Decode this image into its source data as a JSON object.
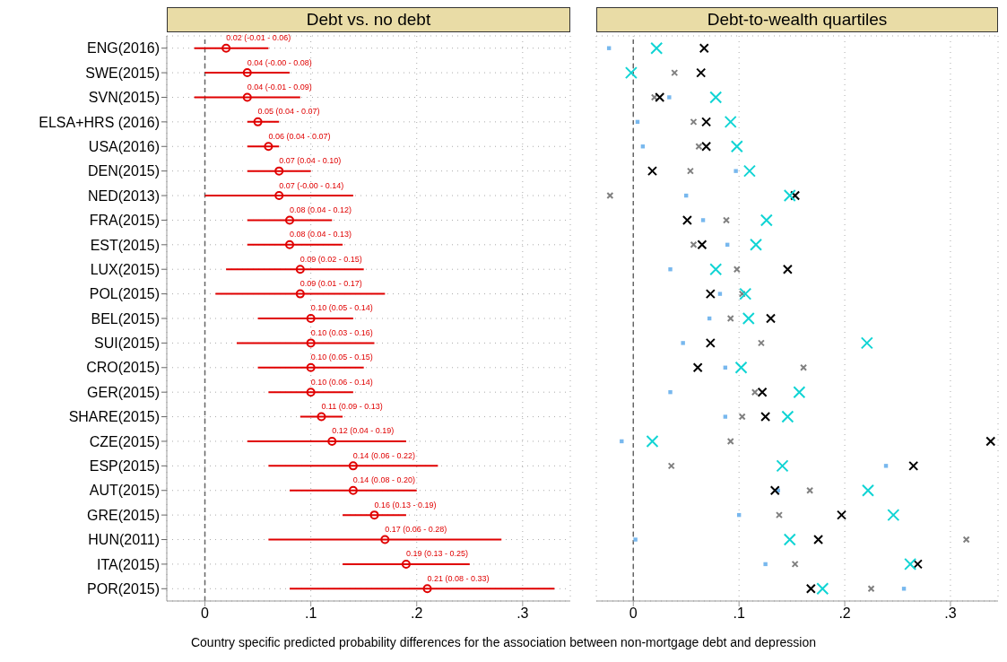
{
  "chart_data": [
    {
      "type": "scatter",
      "orientation": "horizontal",
      "title": "Debt vs. no debt",
      "categories": [
        "ENG(2016)",
        "SWE(2015)",
        "SVN(2015)",
        "ELSA+HRS (2016)",
        "USA(2016)",
        "DEN(2015)",
        "NED(2013)",
        "FRA(2015)",
        "EST(2015)",
        "LUX(2015)",
        "POL(2015)",
        "BEL(2015)",
        "SUI(2015)",
        "CRO(2015)",
        "GER(2015)",
        "SHARE(2015)",
        "CZE(2015)",
        "ESP(2015)",
        "AUT(2015)",
        "GRE(2015)",
        "HUN(2011)",
        "ITA(2015)",
        "POR(2015)"
      ],
      "values": [
        0.02,
        0.04,
        0.04,
        0.05,
        0.06,
        0.07,
        0.07,
        0.08,
        0.08,
        0.09,
        0.09,
        0.1,
        0.1,
        0.1,
        0.1,
        0.11,
        0.12,
        0.14,
        0.14,
        0.16,
        0.17,
        0.19,
        0.21
      ],
      "errors": [
        [
          -0.01,
          0.06
        ],
        [
          -0.0,
          0.08
        ],
        [
          -0.01,
          0.09
        ],
        [
          0.04,
          0.07
        ],
        [
          0.04,
          0.07
        ],
        [
          0.04,
          0.1
        ],
        [
          -0.0,
          0.14
        ],
        [
          0.04,
          0.12
        ],
        [
          0.04,
          0.13
        ],
        [
          0.02,
          0.15
        ],
        [
          0.01,
          0.17
        ],
        [
          0.05,
          0.14
        ],
        [
          0.03,
          0.16
        ],
        [
          0.05,
          0.15
        ],
        [
          0.06,
          0.14
        ],
        [
          0.09,
          0.13
        ],
        [
          0.04,
          0.19
        ],
        [
          0.06,
          0.22
        ],
        [
          0.08,
          0.2
        ],
        [
          0.13,
          0.19
        ],
        [
          0.06,
          0.28
        ],
        [
          0.13,
          0.25
        ],
        [
          0.08,
          0.33
        ]
      ],
      "value_labels": [
        "0.02 (-0.01 - 0.06)",
        "0.04 (-0.00 - 0.08)",
        "0.04 (-0.01 - 0.09)",
        "0.05 (0.04 - 0.07)",
        "0.06 (0.04 - 0.07)",
        "0.07 (0.04 - 0.10)",
        "0.07 (-0.00 - 0.14)",
        "0.08 (0.04 - 0.12)",
        "0.08 (0.04 - 0.13)",
        "0.09 (0.02 - 0.15)",
        "0.09 (0.01 - 0.17)",
        "0.10 (0.05 - 0.14)",
        "0.10 (0.03 - 0.16)",
        "0.10 (0.05 - 0.15)",
        "0.10 (0.06 - 0.14)",
        "0.11 (0.09 - 0.13)",
        "0.12 (0.04 - 0.19)",
        "0.14 (0.06 - 0.22)",
        "0.14 (0.08 - 0.20)",
        "0.16 (0.13 - 0.19)",
        "0.17 (0.06 - 0.28)",
        "0.19 (0.13 - 0.25)",
        "0.21 (0.08 - 0.33)"
      ],
      "color": "#e00000",
      "marker": "circle",
      "xlim": [
        -0.036,
        0.345
      ],
      "xticks": [
        0,
        {
          "value": 0.1,
          "label": ".1"
        },
        {
          "value": 0.2,
          "label": ".2"
        },
        {
          "value": 0.3,
          "label": ".3"
        }
      ],
      "grid": true,
      "ref_lines": [
        {
          "axis": "x",
          "value": 0,
          "color": "#666666",
          "line_style": "dashed"
        }
      ],
      "annotations": [
        "Country specific predicted probability differences for the association between non-mortgage debt and depression"
      ]
    },
    {
      "type": "scatter",
      "orientation": "horizontal",
      "title": "Debt-to-wealth quartiles",
      "categories": [
        null,
        null,
        null,
        null,
        null,
        null,
        null,
        null,
        null,
        null,
        null,
        null,
        null,
        null,
        null,
        null,
        null,
        null,
        null,
        null,
        null,
        null,
        null
      ],
      "series": [
        {
          "color": "#78b8ee",
          "marker": "square",
          "values": [
            -0.023,
            null,
            0.034,
            0.004,
            0.009,
            0.097,
            0.05,
            0.066,
            0.089,
            0.035,
            0.082,
            0.072,
            0.047,
            0.087,
            0.035,
            0.087,
            -0.011,
            0.239,
            0.137,
            0.1,
            0.002,
            0.125,
            0.256
          ]
        },
        {
          "color": "#808080",
          "marker": "cross",
          "values": [
            null,
            0.039,
            0.02,
            0.057,
            0.062,
            0.054,
            -0.022,
            0.088,
            0.057,
            0.098,
            0.103,
            0.092,
            0.121,
            0.161,
            0.115,
            0.103,
            0.092,
            0.036,
            0.167,
            0.138,
            0.315,
            0.153,
            0.225
          ]
        },
        {
          "color": "#000000",
          "marker": "cross",
          "values": [
            0.067,
            0.064,
            0.025,
            0.069,
            0.069,
            0.018,
            0.153,
            0.051,
            0.065,
            0.146,
            0.073,
            0.13,
            0.073,
            0.061,
            0.122,
            0.125,
            0.338,
            0.265,
            0.134,
            0.197,
            0.175,
            0.269,
            0.168
          ]
        },
        {
          "color": "#10d4d4",
          "marker": "cross",
          "values": [
            0.022,
            -0.002,
            0.078,
            0.092,
            0.098,
            0.11,
            0.148,
            0.126,
            0.116,
            0.078,
            0.106,
            0.109,
            0.221,
            0.102,
            0.157,
            0.146,
            0.018,
            0.141,
            0.222,
            0.246,
            0.148,
            0.262,
            0.179
          ]
        }
      ],
      "xlim": [
        -0.035,
        0.345
      ],
      "xticks": [
        0,
        {
          "value": 0.1,
          "label": ".1"
        },
        {
          "value": 0.2,
          "label": ".2"
        },
        {
          "value": 0.3,
          "label": ".3"
        }
      ],
      "grid": true,
      "tick_labels": "x",
      "ref_lines": [
        {
          "axis": "x",
          "value": 0,
          "color": "#666666",
          "line_style": "dashed"
        }
      ]
    }
  ]
}
